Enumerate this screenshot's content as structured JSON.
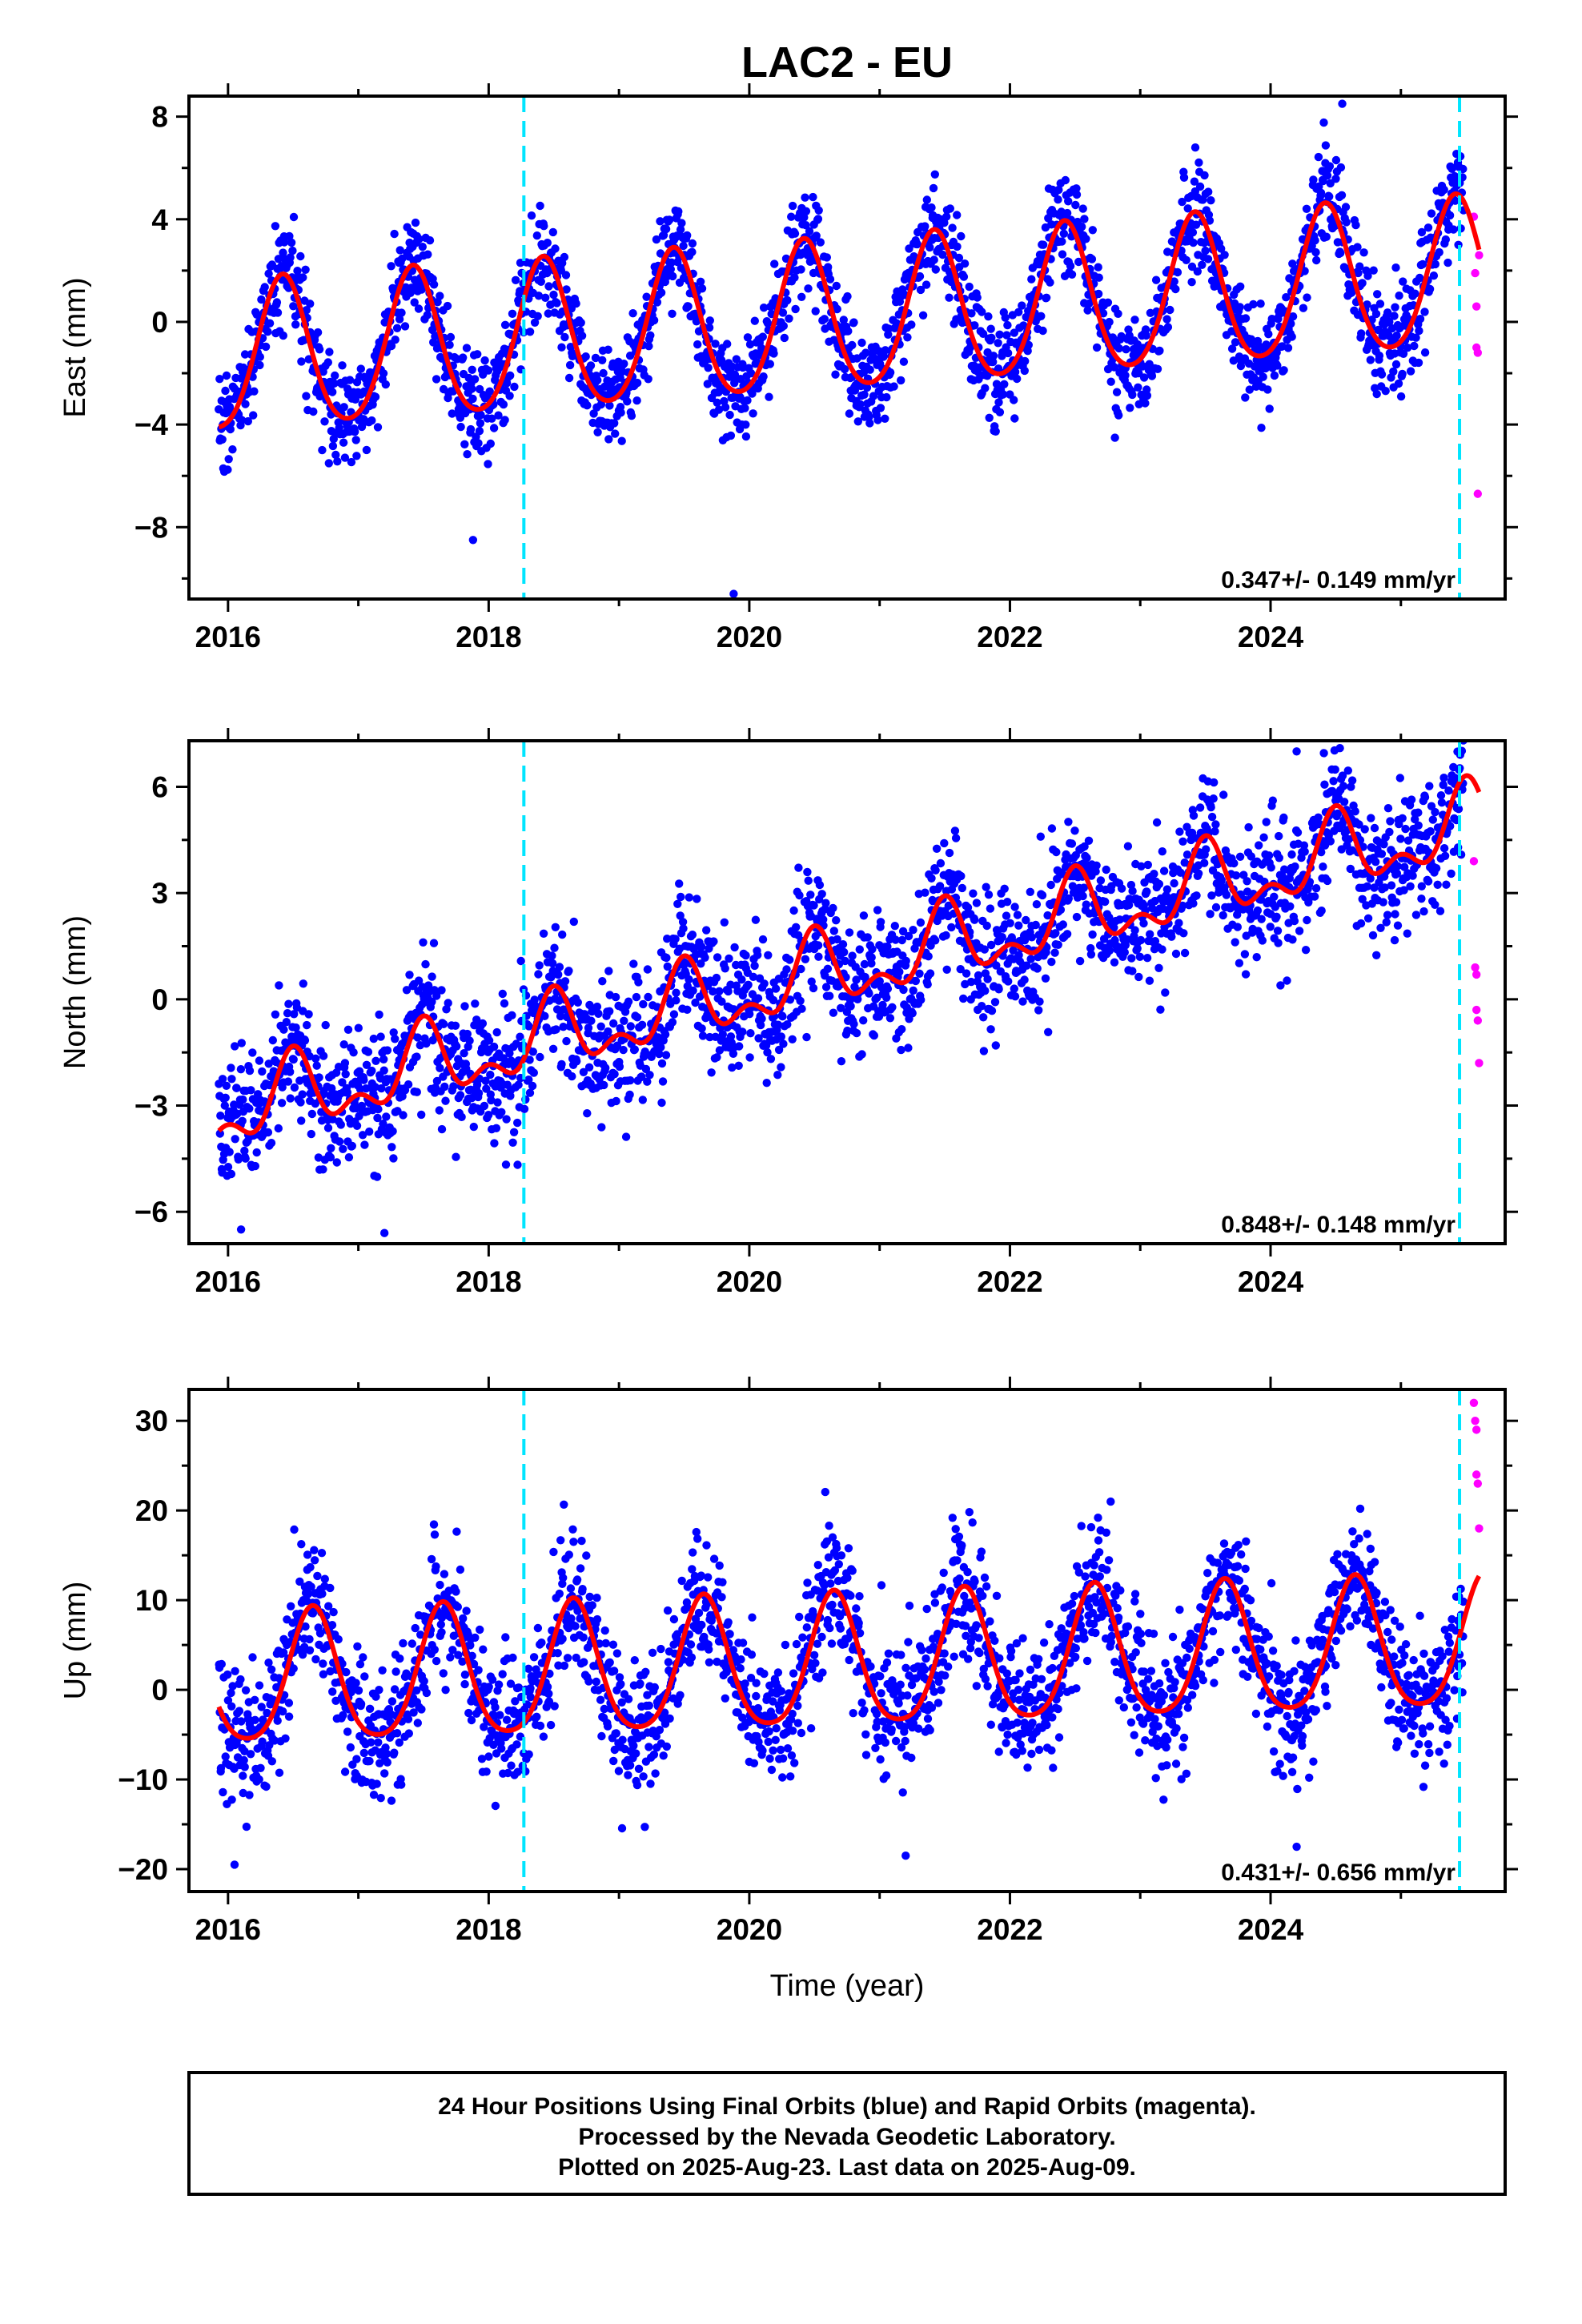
{
  "title": "LAC2 - EU",
  "xlabel": "Time (year)",
  "footer_lines": [
    "24 Hour Positions Using Final Orbits (blue) and Rapid Orbits (magenta).",
    "Processed by the Nevada Geodetic Laboratory.",
    "Plotted on 2025-Aug-23. Last data on 2025-Aug-09."
  ],
  "colors": {
    "final_orbits": "#0000ff",
    "rapid_orbits": "#ff00ff",
    "model": "#ff0000",
    "equipment_change": "#00e5ff"
  },
  "chart_data": [
    {
      "type": "scatter",
      "name": "east",
      "ylabel": "East (mm)",
      "rate_text": "0.347+/- 0.149 mm/yr",
      "xlim": [
        2015.7,
        2025.8
      ],
      "ylim": [
        -10.8,
        8.8
      ],
      "xticks": [
        2016,
        2018,
        2020,
        2022,
        2024
      ],
      "yticks": [
        -8,
        -4,
        0,
        4,
        8
      ],
      "yticklabels": [
        "−8",
        "−4",
        "0",
        "4",
        "8"
      ],
      "equipment_changes": [
        2018.27,
        2025.45
      ],
      "model": {
        "offset": -1.55,
        "rate": 0.347,
        "annual_amplitude": 2.9,
        "annual_phase_year": 2016.42,
        "semiannual_amplitude": 0.35,
        "noise_sd": 1.0,
        "extra_points": [
          [
            2019.88,
            -10.6
          ],
          [
            2017.88,
            -8.5
          ],
          [
            2024.55,
            8.5
          ]
        ]
      },
      "rapid_points": [
        [
          2025.56,
          4.1
        ],
        [
          2025.57,
          1.9
        ],
        [
          2025.58,
          0.6
        ],
        [
          2025.58,
          -1.0
        ],
        [
          2025.59,
          -1.2
        ],
        [
          2025.59,
          -6.7
        ],
        [
          2025.6,
          2.6
        ]
      ]
    },
    {
      "type": "scatter",
      "name": "north",
      "ylabel": "North (mm)",
      "rate_text": "0.848+/- 0.148 mm/yr",
      "xlim": [
        2015.7,
        2025.8
      ],
      "ylim": [
        -6.9,
        7.3
      ],
      "xticks": [
        2016,
        2018,
        2020,
        2022,
        2024
      ],
      "yticks": [
        -6,
        -3,
        0,
        3,
        6
      ],
      "yticklabels": [
        "−6",
        "−3",
        "0",
        "3",
        "6"
      ],
      "equipment_changes": [
        2018.27,
        2025.45
      ],
      "model": {
        "offset": -3.25,
        "rate": 0.848,
        "annual_amplitude": 0.9,
        "annual_phase_year": 2016.5,
        "semiannual_amplitude": 0.55,
        "noise_sd": 0.95,
        "extra_points": [
          [
            2024.2,
            7.0
          ],
          [
            2017.2,
            -6.6
          ],
          [
            2016.1,
            -6.5
          ]
        ]
      },
      "rapid_points": [
        [
          2025.56,
          3.9
        ],
        [
          2025.57,
          0.9
        ],
        [
          2025.58,
          0.7
        ],
        [
          2025.58,
          -0.3
        ],
        [
          2025.59,
          -0.6
        ],
        [
          2025.6,
          -1.8
        ]
      ]
    },
    {
      "type": "scatter",
      "name": "up",
      "ylabel": "Up (mm)",
      "rate_text": "0.431+/- 0.656 mm/yr",
      "xlim": [
        2015.7,
        2025.8
      ],
      "ylim": [
        -22.5,
        33.5
      ],
      "xticks": [
        2016,
        2018,
        2020,
        2022,
        2024
      ],
      "yticks": [
        -20,
        -10,
        0,
        10,
        20,
        30
      ],
      "yticklabels": [
        "−20",
        "−10",
        "0",
        "10",
        "20",
        "30"
      ],
      "equipment_changes": [
        2018.27,
        2025.45
      ],
      "model": {
        "offset": 0.6,
        "rate": 0.431,
        "annual_amplitude": 7.3,
        "annual_phase_year": 2016.65,
        "semiannual_amplitude": 1.2,
        "noise_sd": 3.6,
        "extra_points": [
          [
            2016.05,
            -19.5
          ],
          [
            2021.2,
            -18.5
          ],
          [
            2024.2,
            -17.5
          ]
        ]
      },
      "rapid_points": [
        [
          2025.56,
          32.0
        ],
        [
          2025.57,
          30.0
        ],
        [
          2025.58,
          29.0
        ],
        [
          2025.58,
          24.0
        ],
        [
          2025.59,
          23.0
        ],
        [
          2025.6,
          18.0
        ]
      ]
    }
  ]
}
